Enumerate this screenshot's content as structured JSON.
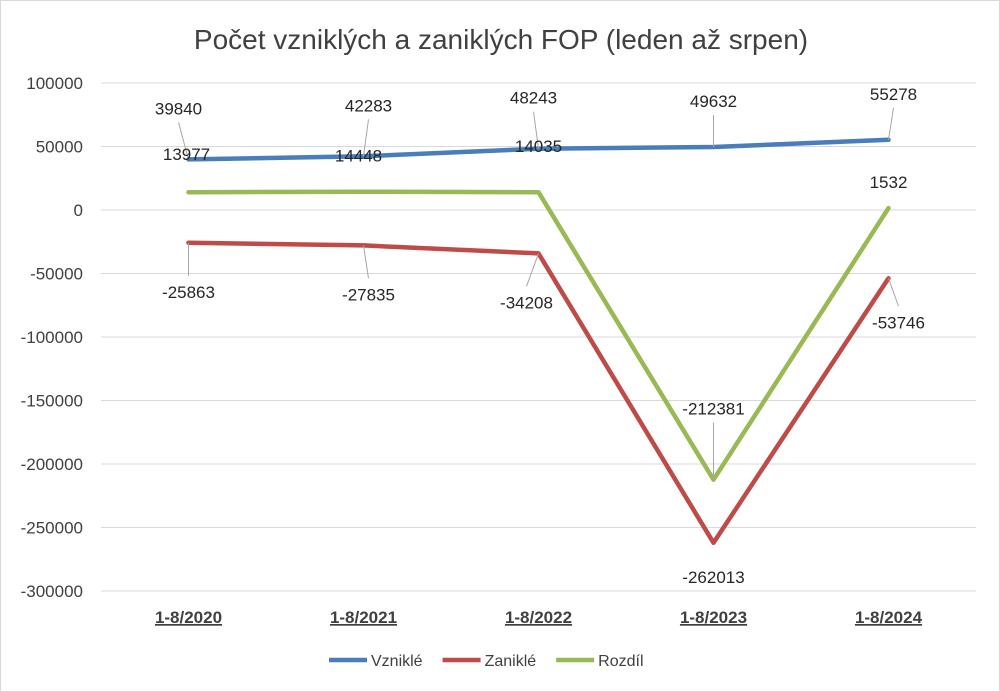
{
  "chart_data": {
    "type": "line",
    "title": "Počet vzniklých a zaniklých FOP (leden až srpen)",
    "xlabel": "",
    "ylabel": "",
    "categories": [
      "1-8/2020",
      "1-8/2021",
      "1-8/2022",
      "1-8/2023",
      "1-8/2024"
    ],
    "ylim": [
      -300000,
      100000
    ],
    "yticks": [
      100000,
      50000,
      0,
      -50000,
      -100000,
      -150000,
      -200000,
      -250000,
      -300000
    ],
    "ytick_labels": [
      "100000",
      "50000",
      "0",
      "-50000",
      "-100000",
      "-150000",
      "-200000",
      "-250000",
      "-300000"
    ],
    "grid": true,
    "legend_position": "bottom",
    "series": [
      {
        "name": "Vzniklé",
        "color": "#4a7ebb",
        "values": [
          39840,
          42283,
          48243,
          49632,
          55278
        ],
        "labels": [
          "39840",
          "42283",
          "48243",
          "49632",
          "55278"
        ]
      },
      {
        "name": "Zaniklé",
        "color": "#be4b48",
        "values": [
          -25863,
          -27835,
          -34208,
          -262013,
          -53746
        ],
        "labels": [
          "-25863",
          "-27835",
          "-34208",
          "-262013",
          "-53746"
        ]
      },
      {
        "name": "Rozdíl",
        "color": "#98b954",
        "values": [
          13977,
          14448,
          14035,
          -212381,
          1532
        ],
        "labels": [
          "13977",
          "14448",
          "14035",
          "-212381",
          "1532"
        ]
      }
    ]
  }
}
